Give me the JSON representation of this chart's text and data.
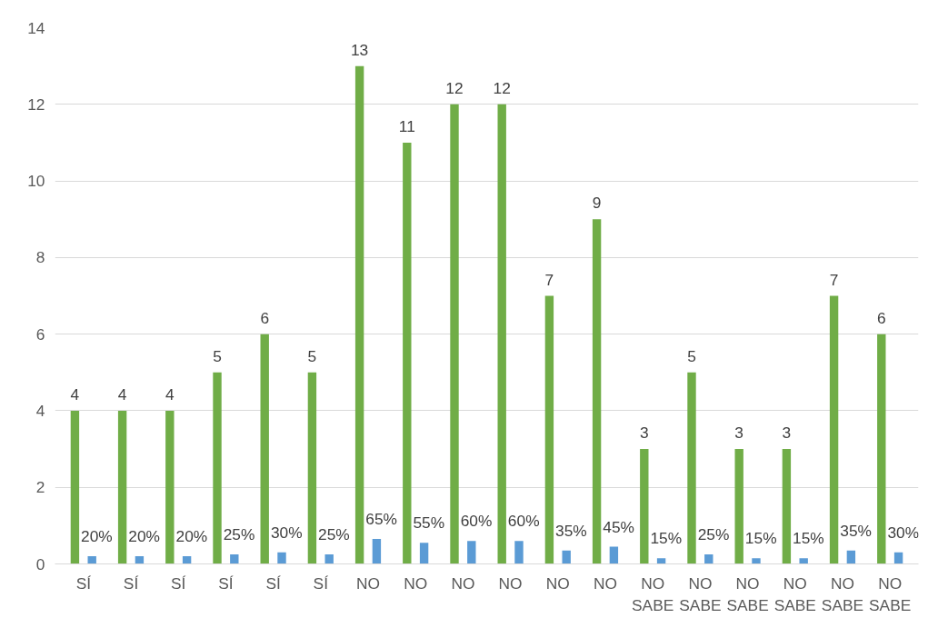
{
  "chart_data": {
    "type": "bar",
    "categories": [
      "SÍ",
      "SÍ",
      "SÍ",
      "SÍ",
      "SÍ",
      "SÍ",
      "NO",
      "NO",
      "NO",
      "NO",
      "NO",
      "NO",
      "NO SABE",
      "NO SABE",
      "NO SABE",
      "NO SABE",
      "NO SABE",
      "NO SABE"
    ],
    "series": [
      {
        "color": "#70ad47",
        "values": [
          4,
          4,
          4,
          5,
          6,
          5,
          13,
          11,
          12,
          12,
          7,
          9,
          3,
          5,
          3,
          3,
          7,
          6
        ],
        "value_labels": [
          "4",
          "4",
          "4",
          "5",
          "6",
          "5",
          "13",
          "11",
          "12",
          "12",
          "7",
          "9",
          "3",
          "5",
          "3",
          "3",
          "7",
          "6"
        ]
      },
      {
        "color": "#5b9bd5",
        "values": [
          0.2,
          0.2,
          0.2,
          0.25,
          0.3,
          0.25,
          0.65,
          0.55,
          0.6,
          0.6,
          0.35,
          0.45,
          0.15,
          0.25,
          0.15,
          0.15,
          0.35,
          0.3
        ],
        "value_labels": [
          "20%",
          "20%",
          "20%",
          "25%",
          "30%",
          "25%",
          "65%",
          "55%",
          "60%",
          "60%",
          "35%",
          "45%",
          "15%",
          "25%",
          "15%",
          "15%",
          "35%",
          "30%"
        ]
      }
    ],
    "ylim": [
      0,
      14
    ],
    "yticks": [
      0,
      2,
      4,
      6,
      8,
      10,
      12,
      14
    ],
    "grid": "y"
  }
}
